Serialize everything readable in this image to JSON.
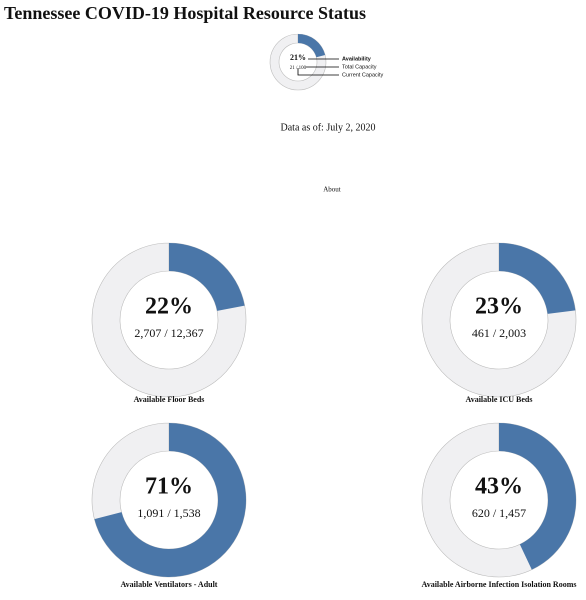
{
  "title": "Tennessee COVID-19 Hospital Resource Status",
  "date_text": "Data as of: July 2, 2020",
  "about": "About",
  "chart_data": [
    {
      "type": "donut",
      "role": "legend",
      "values": [
        21
      ],
      "value_labels": [
        "21%"
      ],
      "detail": "21 / 100",
      "annotations": [
        "Availability",
        "Total Capacity",
        "Current Capacity"
      ],
      "color": "#4a76a8",
      "track_color": "#f0f0f2"
    },
    {
      "type": "donut",
      "title": "Available Floor Beds",
      "values": [
        22
      ],
      "value_labels": [
        "22%"
      ],
      "detail": "2,707 / 12,367",
      "color": "#4a76a8",
      "track_color": "#f0f0f2"
    },
    {
      "type": "donut",
      "title": "Available ICU Beds",
      "values": [
        23
      ],
      "value_labels": [
        "23%"
      ],
      "detail": "461 / 2,003",
      "color": "#4a76a8",
      "track_color": "#f0f0f2"
    },
    {
      "type": "donut",
      "title": "Available Ventilators - Adult",
      "values": [
        71
      ],
      "value_labels": [
        "71%"
      ],
      "detail": "1,091 / 1,538",
      "color": "#4a76a8",
      "track_color": "#f0f0f2"
    },
    {
      "type": "donut",
      "title": "Available Airborne Infection Isolation Rooms",
      "values": [
        43
      ],
      "value_labels": [
        "43%"
      ],
      "detail": "620 / 1,457",
      "color": "#4a76a8",
      "track_color": "#f0f0f2"
    }
  ]
}
